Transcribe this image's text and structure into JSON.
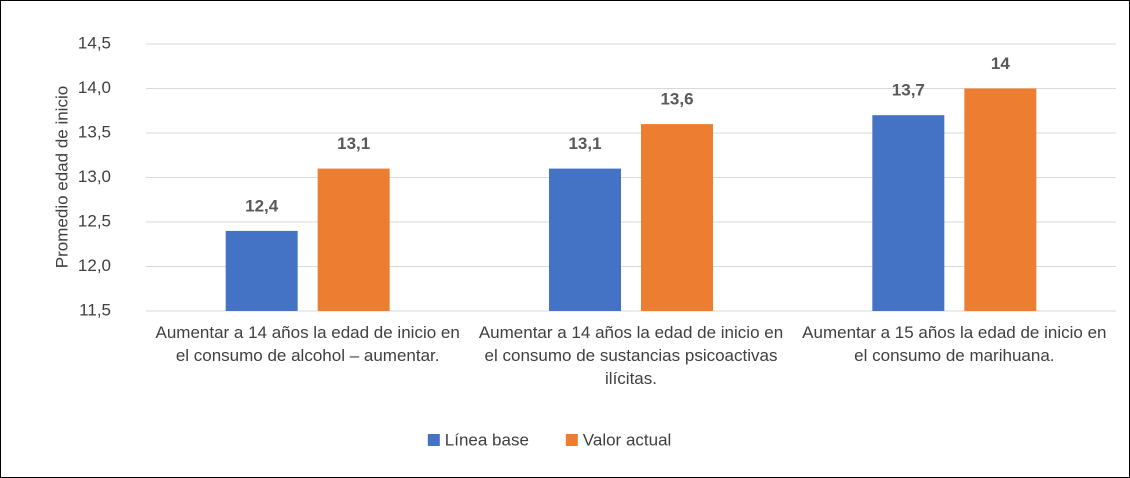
{
  "chart_data": {
    "type": "bar",
    "y_label": "Promedio edad de inicio",
    "categories": [
      "Aumentar a 14 años la edad de inicio en el consumo de alcohol – aumentar.",
      "Aumentar a 14 años la edad de inicio en el consumo de sustancias psicoactivas ilícitas.",
      "Aumentar a 15 años la edad de inicio en el consumo de marihuana."
    ],
    "series": [
      {
        "name": "Línea base",
        "color": "#4472c4",
        "values": [
          12.4,
          13.1,
          13.7
        ],
        "value_labels": [
          "12,4",
          "13,1",
          "13,7"
        ]
      },
      {
        "name": "Valor actual",
        "color": "#ed7d31",
        "values": [
          13.1,
          13.6,
          14
        ],
        "value_labels": [
          "13,1",
          "13,6",
          "14"
        ]
      }
    ],
    "ylim": [
      11.5,
      14.5
    ],
    "yticks": [
      {
        "value": 11.5,
        "label": "11,5"
      },
      {
        "value": 12,
        "label": "12,0"
      },
      {
        "value": 12.5,
        "label": "12,5"
      },
      {
        "value": 13,
        "label": "13,0"
      },
      {
        "value": 13.5,
        "label": "13,5"
      },
      {
        "value": 14,
        "label": "14,0"
      },
      {
        "value": 14.5,
        "label": "14,5"
      }
    ],
    "grid": true,
    "legend": "bottom"
  }
}
